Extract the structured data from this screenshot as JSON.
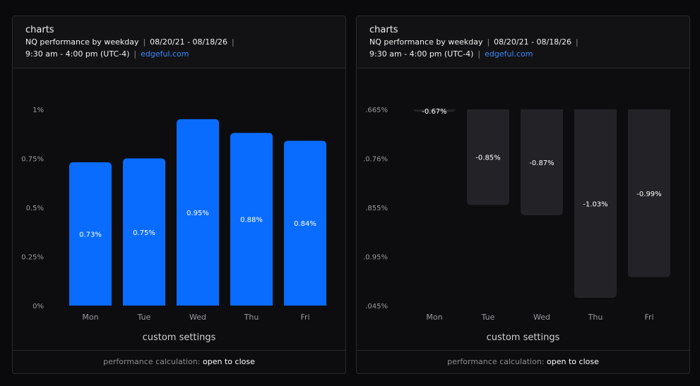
{
  "panels": [
    {
      "title": "charts",
      "subtitle_line1_a": "NQ performance by weekday",
      "subtitle_line1_b": "08/20/21 - 08/18/26",
      "subtitle_line2_a": "9:30 am - 4:00 pm (UTC-4)",
      "subtitle_link": "edgeful.com",
      "custom_settings": "custom settings",
      "footer_label": "performance calculation:",
      "footer_value": "open to close"
    },
    {
      "title": "charts",
      "subtitle_line1_a": "NQ performance by weekday",
      "subtitle_line1_b": "08/20/21 - 08/18/26",
      "subtitle_line2_a": "9:30 am - 4:00 pm (UTC-4)",
      "subtitle_link": "edgeful.com",
      "custom_settings": "custom settings",
      "footer_label": "performance calculation:",
      "footer_value": "open to close"
    }
  ],
  "chart_data": [
    {
      "type": "bar",
      "categories": [
        "Mon",
        "Tue",
        "Wed",
        "Thu",
        "Fri"
      ],
      "values": [
        0.73,
        0.75,
        0.95,
        0.88,
        0.84
      ],
      "data_labels": [
        "0.73%",
        "0.75%",
        "0.95%",
        "0.88%",
        "0.84%"
      ],
      "y_ticks": [
        "1%",
        "0.75%",
        "0.5%",
        "0.25%",
        "0%"
      ],
      "ylim": [
        0,
        1
      ],
      "bar_color": "#0a6cff",
      "grid": false
    },
    {
      "type": "bar",
      "categories": [
        "Mon",
        "Tue",
        "Wed",
        "Thu",
        "Fri"
      ],
      "values": [
        -0.67,
        -0.85,
        -0.87,
        -1.03,
        -0.99
      ],
      "data_labels": [
        "-0.67%",
        "-0.85%",
        "-0.87%",
        "-1.03%",
        "-0.99%"
      ],
      "y_ticks": [
        ".665%",
        ".0.76%",
        ".855%",
        ".0.95%",
        ".045%"
      ],
      "ylim": [
        -1.045,
        -0.665
      ],
      "bar_color": "#232327",
      "grid": false
    }
  ]
}
